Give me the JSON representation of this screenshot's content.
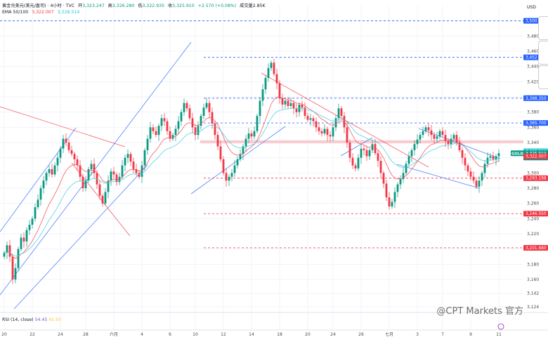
{
  "header": {
    "symbol": "黄金兑美元(美元/盎司) · 4小时 · TVC",
    "open_label": "开",
    "open": "3,323.247",
    "high_label": "高",
    "high": "3,326.280",
    "low_label": "低",
    "low": "3,322.935",
    "close_label": "收",
    "close": "3,325.910",
    "change": "+2.570 (+0.08%)",
    "volume": "成交量2.85K",
    "ema_label": "EMA 50/100",
    "ema50": "3,322.007",
    "ema100": "3,328.514"
  },
  "rsi": {
    "label": "RSI (14, close)",
    "value1": "54.45",
    "value2": "45.93"
  },
  "watermark": "@CPT Markets 官方",
  "colors": {
    "up": "#089981",
    "down": "#f23645",
    "ema50": "#f7525f",
    "ema100": "#4dd0e1",
    "trendline": "#2962ff",
    "grid": "#f0f3fa"
  },
  "chart_data": {
    "type": "candlestick",
    "currency": "USD",
    "ylim": [
      3124,
      3520
    ],
    "y_ticks": [
      3500,
      3480,
      3460,
      3440,
      3420,
      3400,
      3380,
      3360,
      3340,
      3320,
      3300,
      3280,
      3260,
      3240,
      3220,
      3200,
      3180,
      3160,
      3142,
      3124
    ],
    "y_tick_labels": [
      "3,500",
      "3,480",
      "3,460",
      "3,440",
      "3,420",
      "3,400",
      "3,380",
      "3,360",
      "3,340",
      "3,320",
      "3,300",
      "3,280",
      "3,260",
      "3,240",
      "3,220",
      "3,200",
      "3,180",
      "3,160",
      "3,142",
      "3,124"
    ],
    "top_label": "USD",
    "x_tick_labels": [
      "20",
      "22",
      "24",
      "28",
      "六月",
      "4",
      "6",
      "10",
      "12",
      "14",
      "18",
      "20",
      "24",
      "26",
      "七月",
      "3",
      "7",
      "9",
      "11"
    ],
    "close_series": [
      3195,
      3205,
      3190,
      3160,
      3175,
      3200,
      3215,
      3210,
      3225,
      3232,
      3240,
      3255,
      3265,
      3280,
      3290,
      3300,
      3305,
      3298,
      3310,
      3320,
      3332,
      3345,
      3340,
      3330,
      3325,
      3318,
      3310,
      3295,
      3280,
      3290,
      3305,
      3312,
      3300,
      3285,
      3270,
      3260,
      3275,
      3290,
      3302,
      3298,
      3288,
      3295,
      3310,
      3320,
      3325,
      3315,
      3305,
      3300,
      3295,
      3310,
      3330,
      3345,
      3360,
      3355,
      3350,
      3362,
      3372,
      3368,
      3355,
      3345,
      3350,
      3358,
      3368,
      3380,
      3392,
      3385,
      3372,
      3360,
      3350,
      3362,
      3375,
      3386,
      3392,
      3380,
      3365,
      3350,
      3335,
      3318,
      3300,
      3290,
      3295,
      3300,
      3310,
      3318,
      3325,
      3335,
      3345,
      3352,
      3348,
      3355,
      3375,
      3395,
      3410,
      3425,
      3438,
      3445,
      3430,
      3418,
      3398,
      3390,
      3395,
      3388,
      3392,
      3385,
      3380,
      3390,
      3386,
      3375,
      3370,
      3372,
      3368,
      3360,
      3355,
      3352,
      3358,
      3350,
      3348,
      3360,
      3372,
      3385,
      3375,
      3360,
      3340,
      3320,
      3310,
      3306,
      3320,
      3332,
      3330,
      3322,
      3330,
      3338,
      3326,
      3316,
      3300,
      3286,
      3268,
      3256,
      3262,
      3275,
      3285,
      3292,
      3300,
      3312,
      3322,
      3330,
      3338,
      3344,
      3350,
      3355,
      3360,
      3356,
      3350,
      3345,
      3348,
      3355,
      3350,
      3342,
      3338,
      3345,
      3350,
      3340,
      3330,
      3320,
      3310,
      3302,
      3295,
      3290,
      3282,
      3290,
      3300,
      3312,
      3320,
      3322,
      3318,
      3322,
      3326
    ],
    "ema50_last": 3322.007,
    "ema100_last": 3328.514,
    "price_labels": [
      {
        "value": 3500,
        "text": "3,500",
        "color": "#2962ff"
      },
      {
        "value": 3452,
        "text": "3,452",
        "color": "#2962ff"
      },
      {
        "value": 3398.35,
        "text": "3,398.350",
        "color": "#2962ff"
      },
      {
        "value": 3365.7,
        "text": "3,365.700",
        "color": "#2962ff"
      },
      {
        "value": 3328.514,
        "text": "3,328.514",
        "color": "#26c6da"
      },
      {
        "value": 3325.91,
        "text": "3,325.910",
        "color": "#089981",
        "sub": "03:53:39"
      },
      {
        "value": 3322.007,
        "text": "3,322.007",
        "color": "#f23645"
      },
      {
        "value": 3293.198,
        "text": "3,293.198",
        "color": "#f23645"
      },
      {
        "value": 3246.55,
        "text": "3,246.550",
        "color": "#f23645"
      },
      {
        "value": 3201.68,
        "text": "3,201.680",
        "color": "#f23645"
      }
    ],
    "symbol_tag": "GOLD",
    "horizontal_levels": [
      {
        "value": 3500,
        "color": "#2962ff"
      },
      {
        "value": 3452,
        "color": "#2962ff"
      },
      {
        "value": 3398.35,
        "color": "#2962ff"
      },
      {
        "value": 3365.7,
        "color": "#2962ff"
      },
      {
        "value": 3293.198,
        "color": "#f23645"
      },
      {
        "value": 3246.55,
        "color": "#f23645"
      },
      {
        "value": 3201.68,
        "color": "#f23645"
      }
    ],
    "zone": {
      "from": 3339,
      "to": 3343,
      "color": "#f8c7cc"
    }
  }
}
